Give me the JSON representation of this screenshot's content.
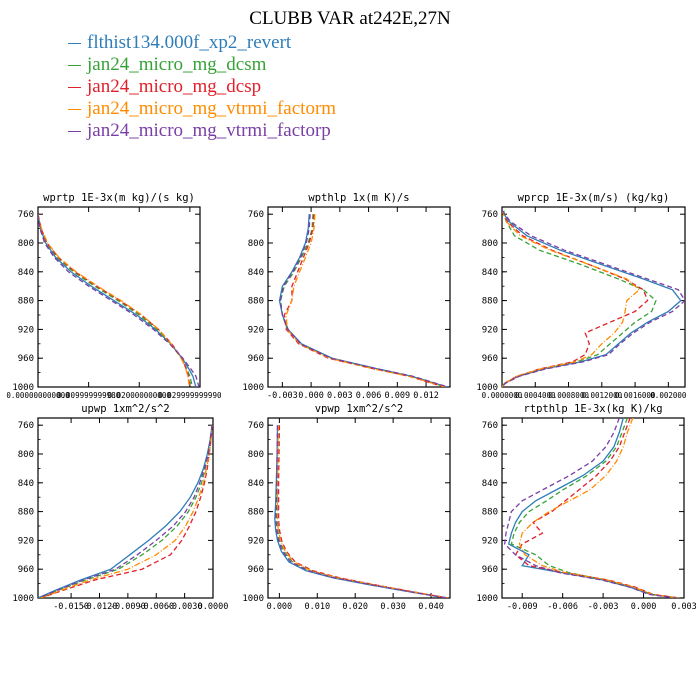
{
  "figure": {
    "title": "CLUBB VAR at242E,27N"
  },
  "legend": [
    {
      "name": "flthist134.000f_xp2_revert",
      "color": "#2e7db8"
    },
    {
      "name": "jan24_micro_mg_dcsm",
      "color": "#36a336"
    },
    {
      "name": "jan24_micro_mg_dcsp",
      "color": "#e0202a"
    },
    {
      "name": "jan24_micro_mg_vtrmi_factorm",
      "color": "#ff8c00"
    },
    {
      "name": "jan24_micro_mg_vtrmi_factorp",
      "color": "#7a3fa6"
    }
  ],
  "chart_data": [
    {
      "type": "line",
      "title": "wprtp  1E-3x(m kg)/(s kg)",
      "xlim": [
        0.0,
        0.032
      ],
      "ylim": [
        1000,
        750
      ],
      "xticks": [
        0.0,
        0.01,
        0.02,
        0.03
      ],
      "xtick_labels": [
        "0.000000000000",
        "0.009999999980",
        "0.020000000000",
        "0.029999999990"
      ],
      "yticks": [
        760,
        800,
        840,
        880,
        920,
        960,
        1000
      ],
      "y": [
        760,
        780,
        800,
        820,
        840,
        860,
        880,
        900,
        920,
        940,
        960,
        975,
        985,
        1000
      ],
      "series": [
        {
          "color": "#2e7db8",
          "dash": "solid",
          "values": [
            0.0,
            0.0005,
            0.0015,
            0.0035,
            0.0065,
            0.0105,
            0.015,
            0.0195,
            0.0232,
            0.0262,
            0.0285,
            0.0298,
            0.0306,
            0.0312
          ]
        },
        {
          "color": "#36a336",
          "dash": "dash",
          "values": [
            0.0,
            0.0006,
            0.0017,
            0.0038,
            0.007,
            0.0112,
            0.0158,
            0.02,
            0.0235,
            0.0262,
            0.0283,
            0.0294,
            0.03,
            0.0305
          ]
        },
        {
          "color": "#e0202a",
          "dash": "dash",
          "values": [
            0.0,
            0.0006,
            0.0018,
            0.004,
            0.0073,
            0.0116,
            0.0162,
            0.0204,
            0.0238,
            0.0264,
            0.0284,
            0.0293,
            0.0297,
            0.03
          ]
        },
        {
          "color": "#ff8c00",
          "dash": "dashdot",
          "values": [
            0.0,
            0.0007,
            0.0019,
            0.0041,
            0.0075,
            0.0118,
            0.0164,
            0.0205,
            0.0238,
            0.0263,
            0.0283,
            0.0292,
            0.0296,
            0.0299
          ]
        },
        {
          "color": "#7a3fa6",
          "dash": "dash",
          "values": [
            0.0,
            0.0004,
            0.0013,
            0.0032,
            0.006,
            0.01,
            0.0145,
            0.019,
            0.0228,
            0.026,
            0.0286,
            0.0302,
            0.0312,
            0.0318
          ]
        }
      ]
    },
    {
      "type": "line",
      "title": "wpthlp  1x(m K)/s",
      "xlim": [
        -0.0045,
        0.0145
      ],
      "ylim": [
        1000,
        750
      ],
      "xticks": [
        -0.003,
        0.0,
        0.003,
        0.006,
        0.009,
        0.012
      ],
      "xtick_labels": [
        "-0.003",
        "0.000",
        "0.003",
        "0.006",
        "0.009",
        "0.012"
      ],
      "yticks": [
        760,
        800,
        840,
        880,
        920,
        960,
        1000
      ],
      "y": [
        760,
        780,
        800,
        820,
        840,
        860,
        880,
        900,
        920,
        940,
        960,
        975,
        985,
        1000
      ],
      "series": [
        {
          "color": "#2e7db8",
          "dash": "solid",
          "values": [
            -0.0002,
            -0.0003,
            -0.0006,
            -0.0012,
            -0.002,
            -0.003,
            -0.0033,
            -0.003,
            -0.0024,
            -0.001,
            0.0022,
            0.007,
            0.0105,
            0.0142
          ]
        },
        {
          "color": "#36a336",
          "dash": "dash",
          "values": [
            0.0002,
            0.0001,
            -0.0003,
            -0.001,
            -0.0018,
            -0.0028,
            -0.0032,
            -0.003,
            -0.0025,
            -0.0012,
            0.002,
            0.0068,
            0.0103,
            0.014
          ]
        },
        {
          "color": "#e0202a",
          "dash": "dash",
          "values": [
            0.0003,
            0.0002,
            -0.0002,
            -0.0008,
            -0.0014,
            -0.002,
            -0.002,
            -0.0028,
            -0.0026,
            -0.0013,
            0.0018,
            0.0066,
            0.0102,
            0.0139
          ]
        },
        {
          "color": "#ff8c00",
          "dash": "dashdot",
          "values": [
            0.0004,
            0.0003,
            0.0,
            -0.0006,
            -0.0012,
            -0.0018,
            -0.002,
            -0.0026,
            -0.0025,
            -0.0012,
            0.0019,
            0.0066,
            0.0102,
            0.014
          ]
        },
        {
          "color": "#7a3fa6",
          "dash": "dash",
          "values": [
            -0.0001,
            -0.0002,
            -0.0005,
            -0.0011,
            -0.0019,
            -0.0029,
            -0.0032,
            -0.003,
            -0.0024,
            -0.0011,
            0.0021,
            0.007,
            0.0106,
            0.0143
          ]
        }
      ]
    },
    {
      "type": "line",
      "title": "wprcp  1E-3x(m/s) (kg/kg)",
      "xlim": [
        0.0,
        0.0022
      ],
      "ylim": [
        1000,
        750
      ],
      "xticks": [
        0.0,
        0.0004,
        0.0008,
        0.0012,
        0.0016,
        0.002
      ],
      "xtick_labels": [
        "0.0000000",
        "0.0004000",
        "0.0008000",
        "0.0012000",
        "0.0016000",
        "0.002000"
      ],
      "yticks": [
        760,
        800,
        840,
        880,
        920,
        960,
        1000
      ],
      "y": [
        755,
        770,
        790,
        810,
        830,
        850,
        865,
        880,
        895,
        910,
        925,
        940,
        955,
        965,
        975,
        985,
        995,
        1000
      ],
      "series": [
        {
          "color": "#2e7db8",
          "dash": "solid",
          "values": [
            0.0,
            8e-05,
            0.0003,
            0.0007,
            0.0012,
            0.0017,
            0.00205,
            0.00215,
            0.002,
            0.00175,
            0.00155,
            0.0014,
            0.00125,
            0.00095,
            0.0005,
            0.0002,
            3e-05,
            0.0
          ]
        },
        {
          "color": "#36a336",
          "dash": "dash",
          "values": [
            2e-05,
            5e-05,
            0.00015,
            0.00045,
            0.00095,
            0.0014,
            0.0017,
            0.00185,
            0.0018,
            0.0016,
            0.00145,
            0.0013,
            0.00115,
            0.0009,
            0.00048,
            0.00018,
            3e-05,
            0.0
          ]
        },
        {
          "color": "#e0202a",
          "dash": "dash",
          "values": [
            0.0,
            6e-05,
            0.00025,
            0.0006,
            0.00105,
            0.00148,
            0.0017,
            0.00175,
            0.0016,
            0.0013,
            0.001,
            0.00105,
            0.001,
            0.00085,
            0.00045,
            0.00018,
            3e-05,
            0.0
          ]
        },
        {
          "color": "#ff8c00",
          "dash": "dashdot",
          "values": [
            0.0,
            5e-05,
            0.00022,
            0.00058,
            0.00105,
            0.0015,
            0.00165,
            0.0015,
            0.00148,
            0.00145,
            0.00135,
            0.0012,
            0.00108,
            0.00088,
            0.00046,
            0.00018,
            3e-05,
            0.0
          ]
        },
        {
          "color": "#7a3fa6",
          "dash": "dash",
          "values": [
            0.0,
            0.0001,
            0.00035,
            0.00075,
            0.00125,
            0.00175,
            0.00212,
            0.0022,
            0.00205,
            0.00178,
            0.00158,
            0.00142,
            0.00128,
            0.00098,
            0.00052,
            0.00021,
            4e-05,
            0.0
          ]
        }
      ]
    },
    {
      "type": "line",
      "title": "upwp  1xm^2/s^2",
      "xlim": [
        -0.0185,
        0.0
      ],
      "ylim": [
        1000,
        750
      ],
      "xticks": [
        -0.015,
        -0.012,
        -0.009,
        -0.006,
        -0.003,
        0.0
      ],
      "xtick_labels": [
        "-0.0150",
        "-0.0120",
        "-0.0090",
        "-0.0060",
        "-0.0030",
        "0.0000"
      ],
      "yticks": [
        760,
        800,
        840,
        880,
        920,
        960,
        1000
      ],
      "y": [
        760,
        780,
        800,
        820,
        840,
        860,
        880,
        900,
        920,
        940,
        960,
        975,
        990,
        1000
      ],
      "series": [
        {
          "color": "#2e7db8",
          "dash": "solid",
          "values": [
            -0.0001,
            -0.0003,
            -0.0006,
            -0.001,
            -0.0016,
            -0.0024,
            -0.0035,
            -0.005,
            -0.0068,
            -0.0088,
            -0.0108,
            -0.014,
            -0.0168,
            -0.0185
          ]
        },
        {
          "color": "#36a336",
          "dash": "dash",
          "values": [
            -0.0001,
            -0.0003,
            -0.0005,
            -0.0008,
            -0.0012,
            -0.0018,
            -0.0026,
            -0.0038,
            -0.0054,
            -0.0075,
            -0.01,
            -0.0135,
            -0.0165,
            -0.0183
          ]
        },
        {
          "color": "#e0202a",
          "dash": "dash",
          "values": [
            -0.0001,
            -0.0002,
            -0.0004,
            -0.0006,
            -0.0009,
            -0.0013,
            -0.0018,
            -0.0025,
            -0.0033,
            -0.0045,
            -0.0075,
            -0.0125,
            -0.016,
            -0.0182
          ]
        },
        {
          "color": "#ff8c00",
          "dash": "dashdot",
          "values": [
            -0.0001,
            -0.0002,
            -0.0004,
            -0.0007,
            -0.001,
            -0.0015,
            -0.0021,
            -0.0029,
            -0.004,
            -0.006,
            -0.009,
            -0.013,
            -0.0162,
            -0.0182
          ]
        },
        {
          "color": "#7a3fa6",
          "dash": "dash",
          "values": [
            -0.0001,
            -0.0003,
            -0.0005,
            -0.0009,
            -0.0014,
            -0.002,
            -0.0029,
            -0.0042,
            -0.006,
            -0.008,
            -0.0103,
            -0.0137,
            -0.0166,
            -0.0184
          ]
        }
      ]
    },
    {
      "type": "line",
      "title": "vpwp  1xm^2/s^2",
      "xlim": [
        -0.003,
        0.045
      ],
      "ylim": [
        1000,
        750
      ],
      "xticks": [
        0.0,
        0.01,
        0.02,
        0.03,
        0.04
      ],
      "xtick_labels": [
        "0.000",
        "0.010",
        "0.020",
        "0.030",
        "0.040"
      ],
      "yticks": [
        760,
        800,
        840,
        880,
        920,
        960,
        1000
      ],
      "y": [
        760,
        800,
        840,
        870,
        890,
        905,
        920,
        935,
        950,
        962,
        972,
        982,
        992,
        1000
      ],
      "series": [
        {
          "color": "#2e7db8",
          "dash": "solid",
          "values": [
            -0.0005,
            -0.0006,
            -0.0008,
            -0.001,
            -0.0012,
            -0.001,
            -0.0005,
            0.0005,
            0.0025,
            0.007,
            0.014,
            0.024,
            0.035,
            0.044
          ]
        },
        {
          "color": "#36a336",
          "dash": "dash",
          "values": [
            -0.0004,
            -0.0005,
            -0.0006,
            -0.0006,
            -0.0006,
            -0.0004,
            0.0001,
            0.0012,
            0.0035,
            0.008,
            0.015,
            0.025,
            0.0355,
            0.0445
          ]
        },
        {
          "color": "#e0202a",
          "dash": "dash",
          "values": [
            0.0,
            -0.0001,
            -0.0002,
            -0.0002,
            -0.0002,
            0.0,
            0.0006,
            0.0018,
            0.0042,
            0.0088,
            0.0158,
            0.0255,
            0.0358,
            0.0445
          ]
        },
        {
          "color": "#ff8c00",
          "dash": "dashdot",
          "values": [
            -0.0003,
            -0.0004,
            -0.0005,
            -0.0005,
            -0.0005,
            -0.0003,
            0.0003,
            0.0015,
            0.0038,
            0.0083,
            0.0153,
            0.0252,
            0.0356,
            0.0444
          ]
        },
        {
          "color": "#7a3fa6",
          "dash": "dash",
          "values": [
            -0.0005,
            -0.0006,
            -0.0007,
            -0.0008,
            -0.0009,
            -0.0007,
            -0.0002,
            0.0008,
            0.003,
            0.0075,
            0.0145,
            0.0245,
            0.0352,
            0.0442
          ]
        }
      ]
    },
    {
      "type": "line",
      "title": "rtpthlp  1E-3x(kg K)/kg",
      "xlim": [
        -0.0105,
        0.003
      ],
      "ylim": [
        1000,
        750
      ],
      "xticks": [
        -0.009,
        -0.006,
        -0.003,
        0.0,
        0.003
      ],
      "xtick_labels": [
        "-0.009",
        "-0.006",
        "-0.003",
        "0.000",
        "0.003"
      ],
      "yticks": [
        760,
        800,
        840,
        880,
        920,
        960,
        1000
      ],
      "y": [
        750,
        770,
        790,
        810,
        830,
        850,
        865,
        880,
        895,
        910,
        925,
        940,
        955,
        965,
        975,
        985,
        995,
        1000
      ],
      "series": [
        {
          "color": "#2e7db8",
          "dash": "solid",
          "values": [
            -0.0015,
            -0.0018,
            -0.0022,
            -0.003,
            -0.0045,
            -0.0065,
            -0.008,
            -0.009,
            -0.0095,
            -0.0098,
            -0.01,
            -0.0085,
            -0.009,
            -0.006,
            -0.003,
            -0.001,
            0.0005,
            0.0025
          ]
        },
        {
          "color": "#36a336",
          "dash": "dash",
          "values": [
            -0.0012,
            -0.0016,
            -0.002,
            -0.0028,
            -0.0042,
            -0.006,
            -0.0072,
            -0.0085,
            -0.0092,
            -0.0096,
            -0.0098,
            -0.008,
            -0.007,
            -0.0055,
            -0.0028,
            -0.0008,
            0.0006,
            0.0026
          ]
        },
        {
          "color": "#e0202a",
          "dash": "dash",
          "values": [
            -0.001,
            -0.0014,
            -0.0018,
            -0.0025,
            -0.0035,
            -0.0048,
            -0.0058,
            -0.0068,
            -0.0082,
            -0.0075,
            -0.009,
            -0.0095,
            -0.0085,
            -0.0058,
            -0.0026,
            -0.0006,
            0.0007,
            0.0027
          ]
        },
        {
          "color": "#ff8c00",
          "dash": "dashdot",
          "values": [
            -0.0008,
            -0.0012,
            -0.0015,
            -0.002,
            -0.0028,
            -0.004,
            -0.0055,
            -0.007,
            -0.0082,
            -0.009,
            -0.0092,
            -0.0088,
            -0.0075,
            -0.0058,
            -0.0027,
            -0.0007,
            0.0006,
            0.0026
          ]
        },
        {
          "color": "#7a3fa6",
          "dash": "dash",
          "values": [
            -0.0018,
            -0.0022,
            -0.0028,
            -0.0038,
            -0.0055,
            -0.0075,
            -0.009,
            -0.0098,
            -0.01,
            -0.0102,
            -0.0103,
            -0.0095,
            -0.008,
            -0.0062,
            -0.0031,
            -0.001,
            0.0004,
            0.0024
          ]
        }
      ]
    }
  ]
}
